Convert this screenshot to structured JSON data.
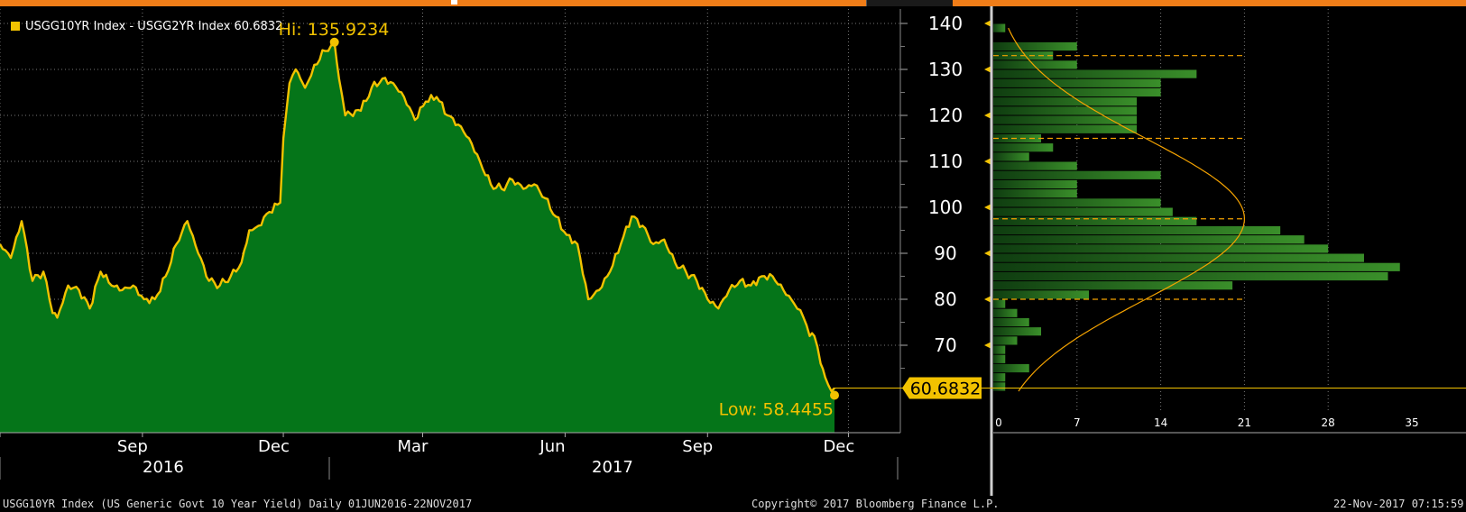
{
  "legend": {
    "swatch_color": "#f2c200",
    "text": "USGG10YR Index - USGG2YR Index 60.6832"
  },
  "annotations": {
    "hi_label": "Hi: 135.9234",
    "low_label": "Low: 58.4455",
    "last_value_label": "60.6832"
  },
  "footer": {
    "left": "USGG10YR Index (US Generic Govt 10 Year Yield)  Daily 01JUN2016-22NOV2017",
    "center": "Copyright© 2017 Bloomberg Finance L.P.",
    "right": "22-Nov-2017 07:15:59"
  },
  "colors": {
    "fill": "#057519",
    "line": "#f2c200",
    "background": "#000000",
    "grid": "#777777",
    "histogram": "#3a8f2a",
    "accent": "#f5a300",
    "top_bar": "#f07d18"
  },
  "chart_data": [
    {
      "type": "area",
      "series": [
        {
          "name": "USGG10YR Index - USGG2YR Index"
        }
      ],
      "x_tick_labels": [
        "Jun",
        "Sep",
        "Dec",
        "Mar",
        "Jun",
        "Sep",
        "Dec"
      ],
      "x_year_labels": [
        "2016",
        "2017"
      ],
      "y_tick_labels": [
        "70",
        "80",
        "90",
        "100",
        "110",
        "120",
        "130",
        "140"
      ],
      "ylim": [
        52,
        144
      ],
      "grid": true,
      "points": [
        [
          "2016-06-01",
          92
        ],
        [
          "2016-06-08",
          89
        ],
        [
          "2016-06-15",
          97
        ],
        [
          "2016-06-22",
          84
        ],
        [
          "2016-06-29",
          86
        ],
        [
          "2016-07-05",
          77
        ],
        [
          "2016-07-08",
          76
        ],
        [
          "2016-07-15",
          83
        ],
        [
          "2016-07-22",
          82
        ],
        [
          "2016-07-29",
          78
        ],
        [
          "2016-08-05",
          86
        ],
        [
          "2016-08-12",
          83
        ],
        [
          "2016-08-19",
          82
        ],
        [
          "2016-08-26",
          83
        ],
        [
          "2016-09-02",
          80
        ],
        [
          "2016-09-09",
          80
        ],
        [
          "2016-09-16",
          85
        ],
        [
          "2016-09-23",
          92
        ],
        [
          "2016-09-30",
          97
        ],
        [
          "2016-10-07",
          90
        ],
        [
          "2016-10-14",
          84
        ],
        [
          "2016-10-21",
          83
        ],
        [
          "2016-10-28",
          85
        ],
        [
          "2016-11-04",
          88
        ],
        [
          "2016-11-09",
          95
        ],
        [
          "2016-11-15",
          96
        ],
        [
          "2016-11-22",
          99
        ],
        [
          "2016-11-29",
          101
        ],
        [
          "2016-12-01",
          115
        ],
        [
          "2016-12-05",
          127
        ],
        [
          "2016-12-09",
          130
        ],
        [
          "2016-12-12",
          128
        ],
        [
          "2016-12-15",
          126
        ],
        [
          "2016-12-21",
          131
        ],
        [
          "2016-12-28",
          134
        ],
        [
          "2017-01-03",
          135.9234
        ],
        [
          "2017-01-06",
          128
        ],
        [
          "2017-01-10",
          120
        ],
        [
          "2017-01-20",
          121
        ],
        [
          "2017-01-27",
          126
        ],
        [
          "2017-02-03",
          128
        ],
        [
          "2017-02-10",
          127
        ],
        [
          "2017-02-17",
          124
        ],
        [
          "2017-02-24",
          119
        ],
        [
          "2017-03-03",
          123
        ],
        [
          "2017-03-10",
          124
        ],
        [
          "2017-03-17",
          120
        ],
        [
          "2017-03-24",
          118
        ],
        [
          "2017-03-31",
          115
        ],
        [
          "2017-04-07",
          110
        ],
        [
          "2017-04-14",
          105
        ],
        [
          "2017-04-21",
          104
        ],
        [
          "2017-04-28",
          106
        ],
        [
          "2017-05-05",
          104
        ],
        [
          "2017-05-12",
          105
        ],
        [
          "2017-05-19",
          102
        ],
        [
          "2017-05-26",
          98
        ],
        [
          "2017-06-02",
          94
        ],
        [
          "2017-06-09",
          92
        ],
        [
          "2017-06-16",
          80
        ],
        [
          "2017-06-23",
          82
        ],
        [
          "2017-06-30",
          86
        ],
        [
          "2017-07-07",
          92
        ],
        [
          "2017-07-14",
          98
        ],
        [
          "2017-07-21",
          96
        ],
        [
          "2017-07-28",
          92
        ],
        [
          "2017-08-04",
          93
        ],
        [
          "2017-08-11",
          88
        ],
        [
          "2017-08-18",
          86
        ],
        [
          "2017-08-25",
          84
        ],
        [
          "2017-09-01",
          80
        ],
        [
          "2017-09-08",
          78
        ],
        [
          "2017-09-15",
          82
        ],
        [
          "2017-09-22",
          84
        ],
        [
          "2017-09-29",
          83
        ],
        [
          "2017-10-06",
          85
        ],
        [
          "2017-10-13",
          85
        ],
        [
          "2017-10-20",
          82
        ],
        [
          "2017-10-27",
          79
        ],
        [
          "2017-11-02",
          76
        ],
        [
          "2017-11-06",
          72
        ],
        [
          "2017-11-09",
          72
        ],
        [
          "2017-11-13",
          66
        ],
        [
          "2017-11-16",
          63
        ],
        [
          "2017-11-20",
          60
        ],
        [
          "2017-11-22",
          60.6832
        ]
      ]
    },
    {
      "type": "bar",
      "orientation": "horizontal",
      "x_tick_labels": [
        "0",
        "7",
        "14",
        "21",
        "28",
        "35"
      ],
      "xlim": [
        0,
        35
      ],
      "bins": [
        [
          138,
          1
        ],
        [
          136,
          0
        ],
        [
          134,
          7
        ],
        [
          132,
          5
        ],
        [
          130,
          7
        ],
        [
          128,
          17
        ],
        [
          126,
          14
        ],
        [
          124,
          14
        ],
        [
          122,
          12
        ],
        [
          120,
          12
        ],
        [
          118,
          12
        ],
        [
          116,
          12
        ],
        [
          114,
          4
        ],
        [
          112,
          5
        ],
        [
          110,
          3
        ],
        [
          108,
          7
        ],
        [
          106,
          14
        ],
        [
          104,
          7
        ],
        [
          102,
          7
        ],
        [
          100,
          14
        ],
        [
          98,
          15
        ],
        [
          96,
          17
        ],
        [
          94,
          24
        ],
        [
          92,
          26
        ],
        [
          90,
          28
        ],
        [
          88,
          31
        ],
        [
          86,
          34
        ],
        [
          84,
          33
        ],
        [
          82,
          20
        ],
        [
          80,
          8
        ],
        [
          78,
          1
        ],
        [
          76,
          2
        ],
        [
          74,
          3
        ],
        [
          72,
          4
        ],
        [
          70,
          2
        ],
        [
          68,
          1
        ],
        [
          66,
          1
        ],
        [
          64,
          3
        ],
        [
          62,
          1
        ],
        [
          60,
          1
        ]
      ],
      "reference_lines": [
        133,
        115,
        97.5,
        80
      ]
    }
  ]
}
